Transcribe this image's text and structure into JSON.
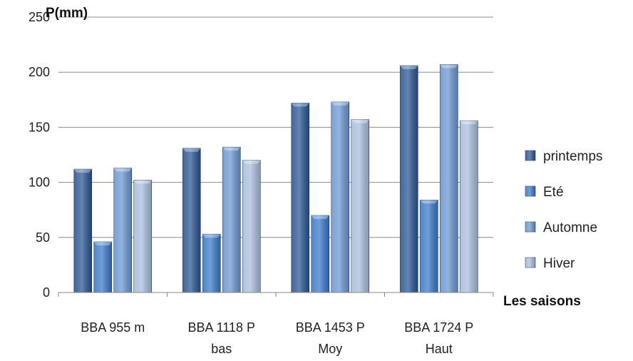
{
  "chart_data": {
    "type": "bar",
    "title": "",
    "ylabel": "P(mm)",
    "xlabel": "Les saisons",
    "ylim": [
      0,
      250
    ],
    "yticks": [
      0,
      50,
      100,
      150,
      200,
      250
    ],
    "grid": true,
    "legend_position": "right",
    "categories": [
      [
        "BBA 955 m"
      ],
      [
        "BBA 1118 P",
        "bas"
      ],
      [
        "BBA 1453 P",
        "Moy"
      ],
      [
        "BBA 1724 P",
        "Haut"
      ]
    ],
    "series": [
      {
        "name": "printemps",
        "color": "#2a5592",
        "values": [
          112,
          131,
          172,
          206
        ]
      },
      {
        "name": "Eté",
        "color": "#3a78c8",
        "values": [
          46,
          53,
          70,
          84
        ]
      },
      {
        "name": "Automne",
        "color": "#6a96d0",
        "values": [
          113,
          132,
          173,
          207
        ]
      },
      {
        "name": "Hiver",
        "color": "#a6bcdc",
        "values": [
          102,
          120,
          157,
          156
        ]
      }
    ]
  }
}
